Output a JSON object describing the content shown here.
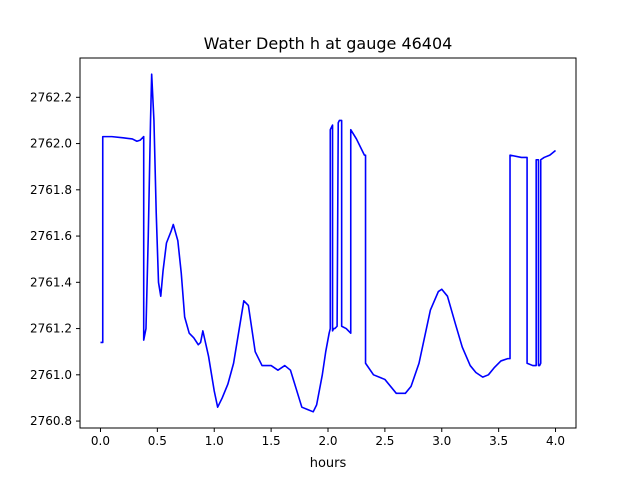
{
  "chart_data": {
    "type": "line",
    "title": "Water Depth h at gauge 46404",
    "xlabel": "hours",
    "ylabel": "",
    "xlim": [
      -0.18,
      4.18
    ],
    "ylim": [
      2760.77,
      2762.37
    ],
    "xticks": [
      0.0,
      0.5,
      1.0,
      1.5,
      2.0,
      2.5,
      3.0,
      3.5,
      4.0
    ],
    "xtick_labels": [
      "0.0",
      "0.5",
      "1.0",
      "1.5",
      "2.0",
      "2.5",
      "3.0",
      "3.5",
      "4.0"
    ],
    "yticks": [
      2760.8,
      2761.0,
      2761.2,
      2761.4,
      2761.6,
      2761.8,
      2762.0,
      2762.2
    ],
    "ytick_labels": [
      "2760.8",
      "2761.0",
      "2761.2",
      "2761.4",
      "2761.6",
      "2761.8",
      "2762.0",
      "2762.2"
    ],
    "grid": false,
    "series": [
      {
        "color": "#0000ff",
        "x": [
          0.0,
          0.02,
          0.02,
          0.1,
          0.2,
          0.28,
          0.32,
          0.35,
          0.38,
          0.38,
          0.4,
          0.42,
          0.44,
          0.45,
          0.47,
          0.49,
          0.51,
          0.53,
          0.55,
          0.58,
          0.62,
          0.64,
          0.68,
          0.71,
          0.74,
          0.78,
          0.82,
          0.86,
          0.88,
          0.9,
          0.95,
          1.0,
          1.03,
          1.07,
          1.12,
          1.17,
          1.22,
          1.26,
          1.3,
          1.36,
          1.42,
          1.5,
          1.56,
          1.62,
          1.67,
          1.72,
          1.77,
          1.82,
          1.87,
          1.9,
          1.95,
          1.98,
          2.01,
          2.02,
          2.02,
          2.03,
          2.04,
          2.04,
          2.05,
          2.06,
          2.08,
          2.09,
          2.1,
          2.12,
          2.12,
          2.16,
          2.2,
          2.2,
          2.25,
          2.32,
          2.33,
          2.33,
          2.4,
          2.5,
          2.6,
          2.68,
          2.73,
          2.8,
          2.9,
          2.97,
          3.0,
          3.05,
          3.12,
          3.18,
          3.25,
          3.3,
          3.36,
          3.41,
          3.46,
          3.52,
          3.58,
          3.6,
          3.6,
          3.7,
          3.75,
          3.75,
          3.8,
          3.83,
          3.83,
          3.84,
          3.85,
          3.85,
          3.86,
          3.87,
          3.87,
          3.9,
          3.95,
          4.0
        ],
        "y": [
          2761.14,
          2761.14,
          2762.03,
          2762.03,
          2762.025,
          2762.02,
          2762.01,
          2762.015,
          2762.03,
          2761.15,
          2761.2,
          2761.6,
          2762.1,
          2762.3,
          2762.1,
          2761.7,
          2761.4,
          2761.34,
          2761.45,
          2761.57,
          2761.62,
          2761.65,
          2761.58,
          2761.44,
          2761.25,
          2761.18,
          2761.16,
          2761.13,
          2761.14,
          2761.19,
          2761.08,
          2760.93,
          2760.86,
          2760.9,
          2760.96,
          2761.05,
          2761.2,
          2761.32,
          2761.3,
          2761.1,
          2761.04,
          2761.04,
          2761.02,
          2761.04,
          2761.02,
          2760.94,
          2760.86,
          2760.85,
          2760.84,
          2760.87,
          2761.0,
          2761.1,
          2761.18,
          2761.2,
          2762.06,
          2762.07,
          2762.08,
          2761.19,
          2761.2,
          2761.2,
          2761.21,
          2762.09,
          2762.1,
          2762.1,
          2761.21,
          2761.2,
          2761.18,
          2762.06,
          2762.02,
          2761.95,
          2761.95,
          2761.05,
          2761.0,
          2760.98,
          2760.92,
          2760.92,
          2760.95,
          2761.05,
          2761.28,
          2761.36,
          2761.37,
          2761.34,
          2761.22,
          2761.12,
          2761.04,
          2761.01,
          2760.99,
          2761.0,
          2761.03,
          2761.06,
          2761.07,
          2761.07,
          2761.95,
          2761.94,
          2761.94,
          2761.05,
          2761.04,
          2761.04,
          2761.93,
          2761.93,
          2761.93,
          2761.04,
          2761.04,
          2761.05,
          2761.93,
          2761.94,
          2761.95,
          2761.97
        ]
      }
    ]
  }
}
